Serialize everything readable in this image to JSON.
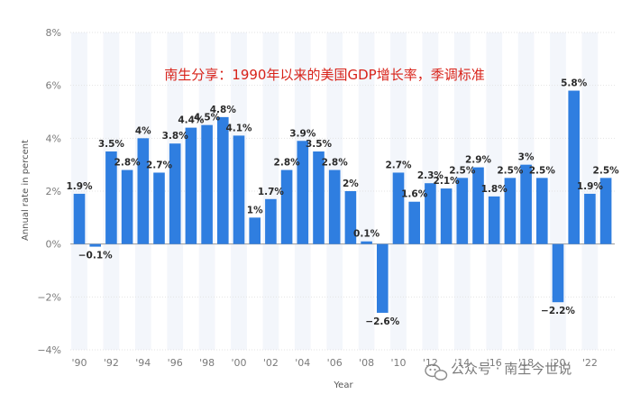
{
  "chart_data": {
    "type": "bar",
    "title": "南生分享：1990年以来的美国GDP增长率，季调标准",
    "xlabel": "Year",
    "ylabel": "Annual rate in percent",
    "ylim": [
      -4,
      8
    ],
    "yticks": [
      8,
      6,
      4,
      2,
      0,
      -2,
      -4
    ],
    "ytick_labels": [
      "8%",
      "6%",
      "4%",
      "2%",
      "0%",
      "−2%",
      "−4%"
    ],
    "x_tick_labels": [
      "'90",
      "'92",
      "'94",
      "'96",
      "'98",
      "'00",
      "'02",
      "'04",
      "'06",
      "'08",
      "'10",
      "'12",
      "'14",
      "'16",
      "'18",
      "'20",
      "'22"
    ],
    "categories": [
      1990,
      1991,
      1992,
      1993,
      1994,
      1995,
      1996,
      1997,
      1998,
      1999,
      2000,
      2001,
      2002,
      2003,
      2004,
      2005,
      2006,
      2007,
      2008,
      2009,
      2010,
      2011,
      2012,
      2013,
      2014,
      2015,
      2016,
      2017,
      2018,
      2019,
      2020,
      2021,
      2022,
      2023
    ],
    "values": [
      1.9,
      -0.1,
      3.5,
      2.8,
      4.0,
      2.7,
      3.8,
      4.4,
      4.5,
      4.8,
      4.1,
      1.0,
      1.7,
      2.8,
      3.9,
      3.5,
      2.8,
      2.0,
      0.1,
      -2.6,
      2.7,
      1.6,
      2.3,
      2.1,
      2.5,
      2.9,
      1.8,
      2.5,
      3.0,
      2.5,
      -2.2,
      5.8,
      1.9,
      2.5
    ],
    "data_labels": [
      "1.9%",
      "−0.1%",
      "3.5%",
      "2.8%",
      "4%",
      "2.7%",
      "3.8%",
      "4.4%",
      "4.5%",
      "4.8%",
      "4.1%",
      "1%",
      "1.7%",
      "2.8%",
      "3.9%",
      "3.5%",
      "2.8%",
      "2%",
      "0.1%",
      "−2.6%",
      "2.7%",
      "1.6%",
      "2.3%",
      "2.1%",
      "2.5%",
      "2.9%",
      "1.8%",
      "2.5%",
      "3%",
      "2.5%",
      "−2.2%",
      "5.8%",
      "1.9%",
      "2.5%"
    ],
    "bar_color": "#2f7ee0",
    "band_color": "#f3f6fb",
    "grid": true,
    "legend": "none"
  },
  "watermark": {
    "text": "公众号 · 南生今世说",
    "icon": "wechat-icon"
  }
}
